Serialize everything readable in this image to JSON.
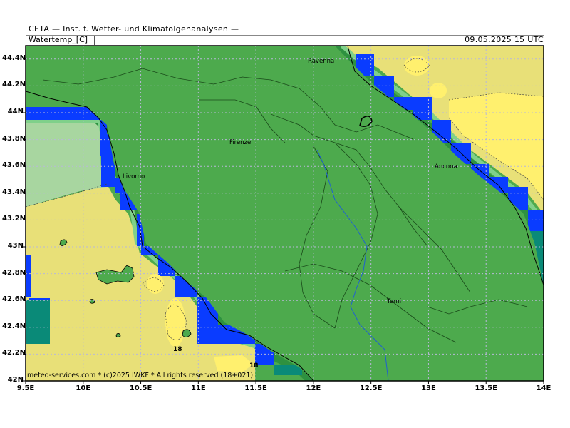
{
  "header": {
    "organization": "CETA — Inst. f. Wetter- und Klimafolgenanalysen —",
    "variable": "Watertemp_[C]",
    "valid_time": "09.05.2025 15 UTC"
  },
  "map": {
    "projection": "lat-lon",
    "lon_range": [
      9.5,
      14.0
    ],
    "lat_range": [
      42.0,
      44.5
    ],
    "lat_labels": [
      "44.4N",
      "44.2N",
      "44N",
      "43.8N",
      "43.6N",
      "43.4N",
      "43.2N",
      "43N",
      "42.8N",
      "42.6N",
      "42.4N",
      "42.2N",
      "42N"
    ],
    "lon_labels": [
      "9.5E",
      "10E",
      "10.5E",
      "11E",
      "11.5E",
      "12E",
      "12.5E",
      "13E",
      "13.5E",
      "14E"
    ],
    "grid": true,
    "cities": [
      {
        "name": "Ravenna"
      },
      {
        "name": "Firenze"
      },
      {
        "name": "Livorno"
      },
      {
        "name": "Ancona"
      },
      {
        "name": "Terni"
      }
    ],
    "contour_labels": [
      "18",
      "18"
    ],
    "fill_colors": {
      "land_mask": "#4daa4d",
      "coast_band_dark": "#2e9140",
      "coast_band_mid": "#48b04c",
      "coast_band_light": "#7fd08a",
      "cool_water": "#a8d6a0",
      "mild_water": "#e8e078",
      "warm_water": "#fff06e",
      "cold_water": "#0a3cff",
      "teal": "#0a8a78"
    }
  },
  "footer": {
    "copyright": "meteo-services.com * (c)2025 IWKF * All rights reserved (18+021)"
  }
}
